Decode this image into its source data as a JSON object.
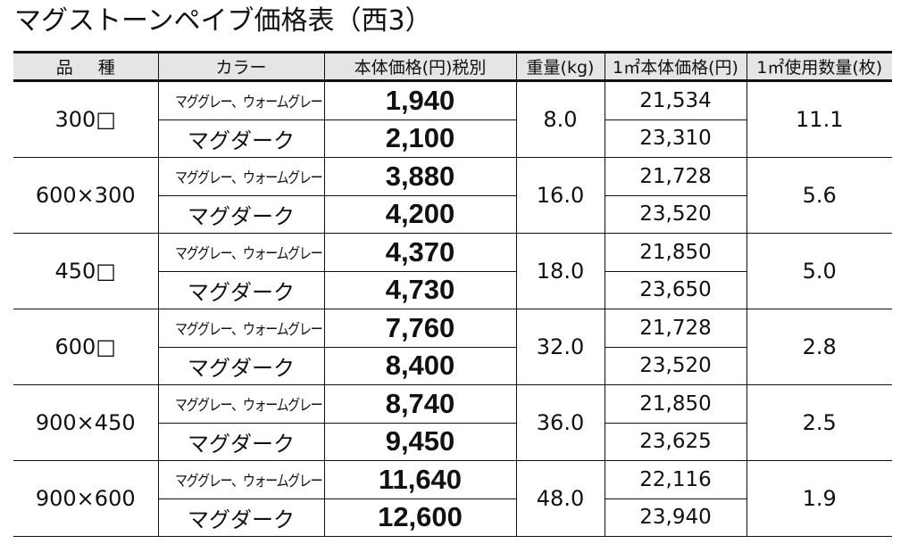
{
  "title": "マグストーンペイブ価格表（西3）",
  "table": {
    "headers": {
      "variety": "品種",
      "color": "カラー",
      "unit_price": "本体価格(円)税別",
      "weight": "重量(kg)",
      "price_per_m2": "1㎡本体価格(円)",
      "qty_per_m2": "1㎡使用数量(枚)"
    },
    "groups": [
      {
        "size": "300□",
        "weight": "8.0",
        "qty_per_m2": "11.1",
        "rows": [
          {
            "color": "マググレー、ウォームグレー",
            "unit_price": "1,940",
            "price_per_m2": "21,534"
          },
          {
            "color": "マグダーク",
            "unit_price": "2,100",
            "price_per_m2": "23,310"
          }
        ]
      },
      {
        "size": "600×300",
        "weight": "16.0",
        "qty_per_m2": "5.6",
        "rows": [
          {
            "color": "マググレー、ウォームグレー",
            "unit_price": "3,880",
            "price_per_m2": "21,728"
          },
          {
            "color": "マグダーク",
            "unit_price": "4,200",
            "price_per_m2": "23,520"
          }
        ]
      },
      {
        "size": "450□",
        "weight": "18.0",
        "qty_per_m2": "5.0",
        "rows": [
          {
            "color": "マググレー、ウォームグレー",
            "unit_price": "4,370",
            "price_per_m2": "21,850"
          },
          {
            "color": "マグダーク",
            "unit_price": "4,730",
            "price_per_m2": "23,650"
          }
        ]
      },
      {
        "size": "600□",
        "weight": "32.0",
        "qty_per_m2": "2.8",
        "rows": [
          {
            "color": "マググレー、ウォームグレー",
            "unit_price": "7,760",
            "price_per_m2": "21,728"
          },
          {
            "color": "マグダーク",
            "unit_price": "8,400",
            "price_per_m2": "23,520"
          }
        ]
      },
      {
        "size": "900×450",
        "weight": "36.0",
        "qty_per_m2": "2.5",
        "rows": [
          {
            "color": "マググレー、ウォームグレー",
            "unit_price": "8,740",
            "price_per_m2": "21,850"
          },
          {
            "color": "マグダーク",
            "unit_price": "9,450",
            "price_per_m2": "23,625"
          }
        ]
      },
      {
        "size": "900×600",
        "weight": "48.0",
        "qty_per_m2": "1.9",
        "rows": [
          {
            "color": "マググレー、ウォームグレー",
            "unit_price": "11,640",
            "price_per_m2": "22,116"
          },
          {
            "color": "マグダーク",
            "unit_price": "12,600",
            "price_per_m2": "23,940"
          }
        ]
      }
    ]
  }
}
